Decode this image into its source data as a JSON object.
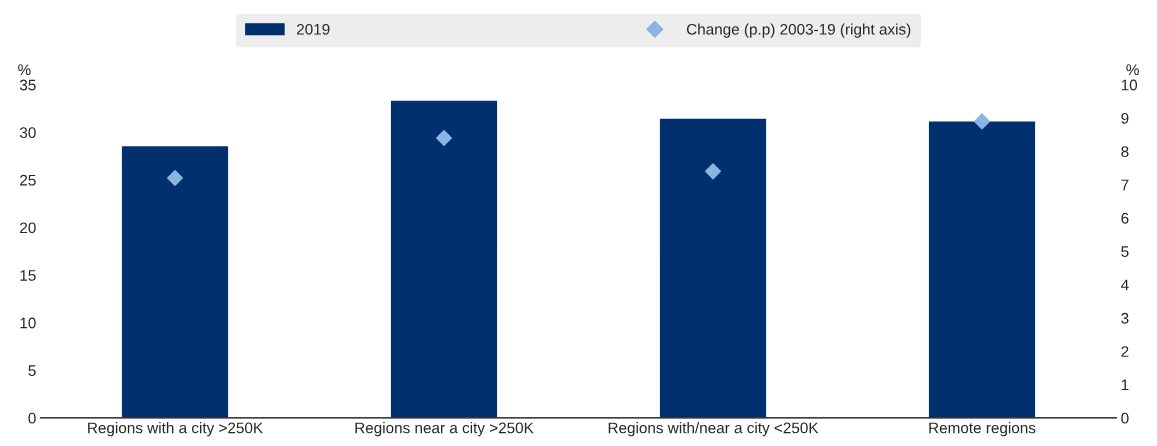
{
  "chart_data": {
    "type": "bar",
    "categories": [
      "Regions with a city >250K",
      "Regions near a city >250K",
      "Regions with/near a city <250K",
      "Remote regions"
    ],
    "series": [
      {
        "name": "2019",
        "color": "#00306e",
        "values": [
          28.6,
          33.4,
          31.5,
          31.2
        ]
      },
      {
        "name": "Change (p.p) 2003-19 (right axis)",
        "type": "scatter",
        "axis": "y2",
        "marker": "diamond",
        "color": "#8cb4e2",
        "values": [
          7.2,
          8.4,
          7.4,
          8.9
        ]
      }
    ],
    "ylabel": "%",
    "y2label": "%",
    "ylim": [
      0,
      35
    ],
    "yticks": [
      0,
      5,
      10,
      15,
      20,
      25,
      30,
      35
    ],
    "y2lim": [
      0,
      10
    ],
    "y2ticks": [
      0,
      1,
      2,
      3,
      4,
      5,
      6,
      7,
      8,
      9,
      10
    ],
    "grid": false,
    "legend": "top"
  }
}
